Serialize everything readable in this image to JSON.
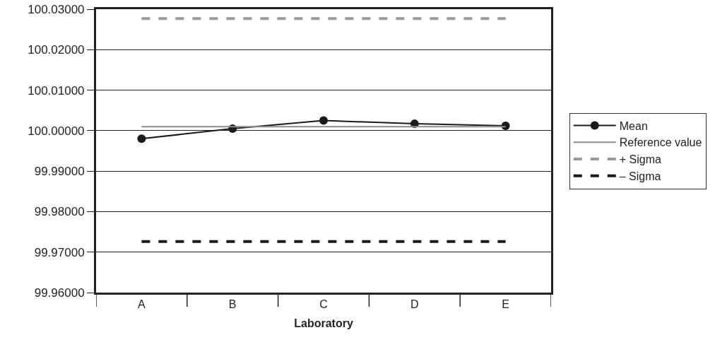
{
  "chart_data": {
    "type": "line",
    "xlabel": "Laboratory",
    "categories": [
      "A",
      "B",
      "C",
      "D",
      "E"
    ],
    "series": [
      {
        "name": "Mean",
        "color": "#1a1a1a",
        "values": [
          99.998,
          100.0005,
          100.0025,
          100.0017,
          100.0012
        ],
        "marker": "circle",
        "line_style": "solid"
      },
      {
        "name": "Reference value",
        "color": "#8c8c8c",
        "values": [
          100.001,
          100.001,
          100.001,
          100.001,
          100.001
        ],
        "marker": "none",
        "line_style": "solid"
      },
      {
        "name": "+ Sigma",
        "color": "#999999",
        "values": [
          100.0277,
          100.0277,
          100.0277,
          100.0277,
          100.0277
        ],
        "marker": "none",
        "line_style": "dashed"
      },
      {
        "name": "– Sigma",
        "color": "#1a1a1a",
        "values": [
          99.9726,
          99.9726,
          99.9726,
          99.9726,
          99.9726
        ],
        "marker": "none",
        "line_style": "dashed"
      }
    ],
    "ylim": [
      99.96,
      100.03
    ],
    "yticks": [
      {
        "value": 99.96,
        "label": "99.96000"
      },
      {
        "value": 99.97,
        "label": "99.97000"
      },
      {
        "value": 99.98,
        "label": "99.98000"
      },
      {
        "value": 99.99,
        "label": "99.99000"
      },
      {
        "value": 100.0,
        "label": "100.00000"
      },
      {
        "value": 100.01,
        "label": "100.01000"
      },
      {
        "value": 100.02,
        "label": "100.02000"
      },
      {
        "value": 100.03,
        "label": "100.03000"
      }
    ],
    "grid": "y",
    "legend": "right"
  }
}
